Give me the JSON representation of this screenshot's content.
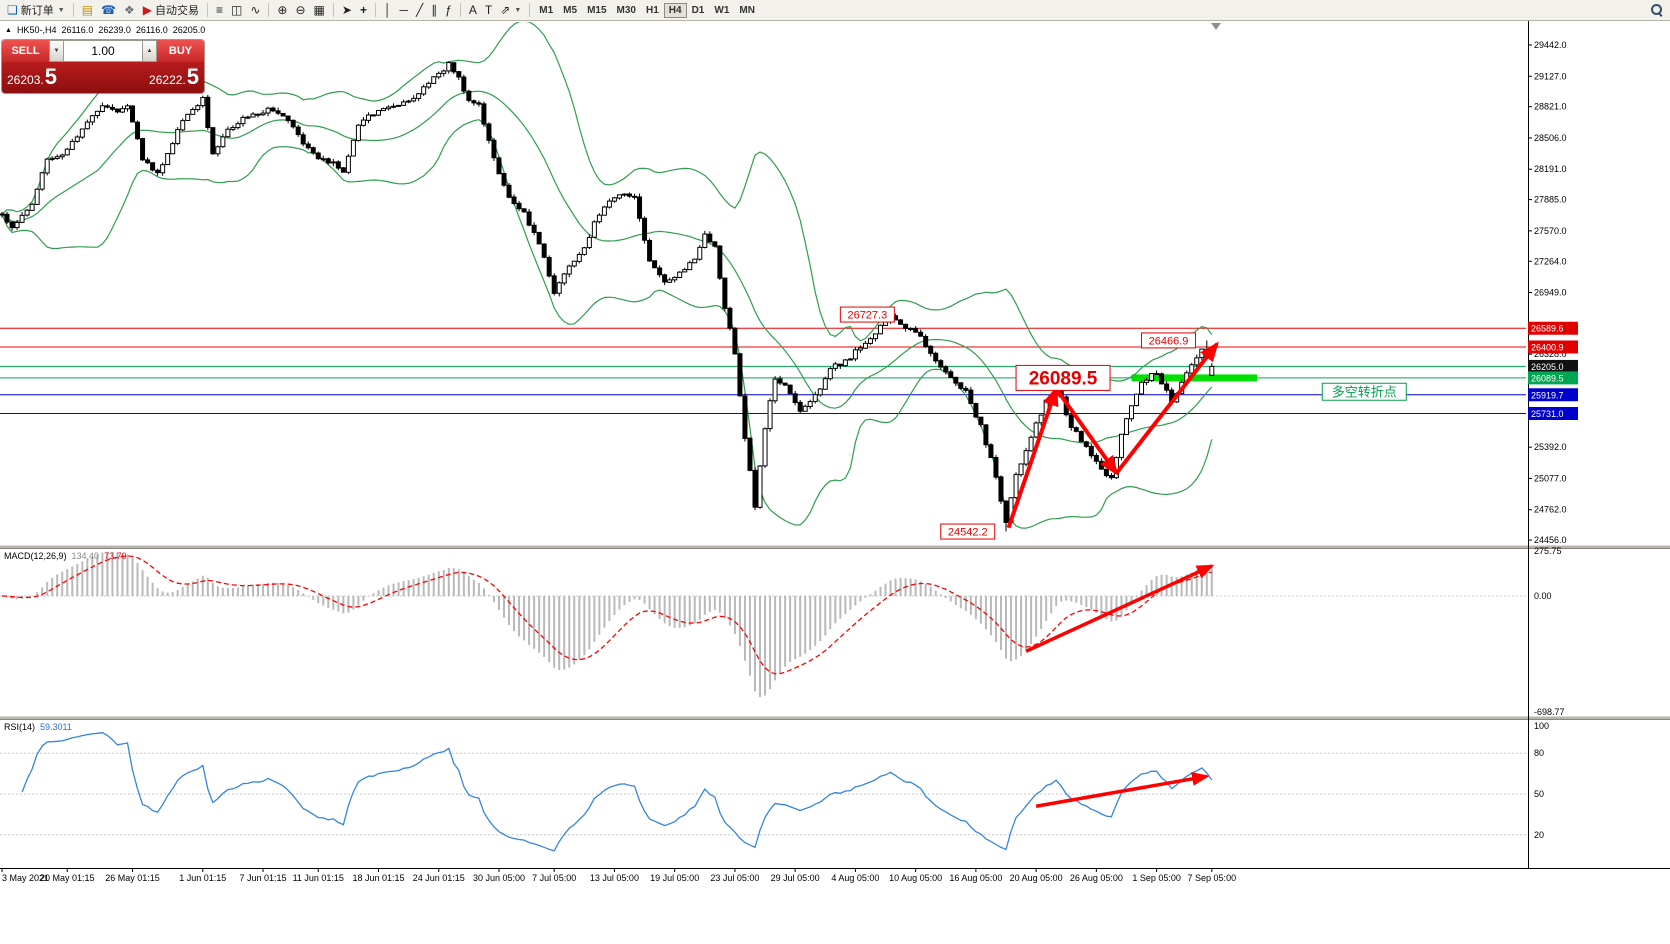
{
  "toolbar": {
    "new_order_label": "新订单",
    "algo_trading_label": "自动交易",
    "timeframes": [
      "M1",
      "M5",
      "M15",
      "M30",
      "H1",
      "H4",
      "D1",
      "W1",
      "MN"
    ],
    "active_timeframe": "H4"
  },
  "symbol_bar": {
    "collapse_icon": "▲",
    "symbol": "HK50-,H4",
    "open": "26116.0",
    "high": "26239.0",
    "low": "26116.0",
    "close": "26205.0"
  },
  "trade_panel": {
    "sell_label": "SELL",
    "buy_label": "BUY",
    "volume": "1.00",
    "sell_price_main": "26203.",
    "sell_price_pip": "5",
    "buy_price_main": "26222.",
    "buy_price_pip": "5"
  },
  "colors": {
    "bull": "#ffffff",
    "bear": "#000000",
    "wick": "#000000",
    "band": "#2f9e4f",
    "macd_hist": "#b9b9b9",
    "macd_signal": "#ff0000",
    "rsi_line": "#3584e4",
    "arrow": "#ff0000",
    "red_line": "#f00000",
    "blue_line": "#0000e0",
    "green_line": "#00a651"
  },
  "chart_data": {
    "type": "candlestick",
    "symbol": "HK50-",
    "period": "H4",
    "bars": 242,
    "ohlc_readout": {
      "open": 26116.0,
      "high": 26239.0,
      "low": 26116.0,
      "close": 26205.0
    },
    "y_axis": {
      "min": 24456.0,
      "max": 29442.0,
      "grid_labels": [
        "29442.0",
        "29127.0",
        "28821.0",
        "28506.0",
        "28191.0",
        "27885.0",
        "27570.0",
        "27264.0",
        "26949.0",
        "26328.0",
        "25392.0",
        "25077.0",
        "24762.0",
        "24456.0"
      ]
    },
    "time_labels": [
      {
        "text": "3 May 2021",
        "bar": 0
      },
      {
        "text": "20 May 01:15",
        "bar": 13
      },
      {
        "text": "26 May 01:15",
        "bar": 26
      },
      {
        "text": "1 Jun 01:15",
        "bar": 40
      },
      {
        "text": "7 Jun 01:15",
        "bar": 52
      },
      {
        "text": "11 Jun 01:15",
        "bar": 63
      },
      {
        "text": "18 Jun 01:15",
        "bar": 75
      },
      {
        "text": "24 Jun 01:15",
        "bar": 87
      },
      {
        "text": "30 Jun 05:00",
        "bar": 99
      },
      {
        "text": "7 Jul 05:00",
        "bar": 110
      },
      {
        "text": "13 Jul 05:00",
        "bar": 122
      },
      {
        "text": "19 Jul 05:00",
        "bar": 134
      },
      {
        "text": "23 Jul 05:00",
        "bar": 146
      },
      {
        "text": "29 Jul 05:00",
        "bar": 158
      },
      {
        "text": "4 Aug 05:00",
        "bar": 170
      },
      {
        "text": "10 Aug 05:00",
        "bar": 182
      },
      {
        "text": "16 Aug 05:00",
        "bar": 194
      },
      {
        "text": "20 Aug 05:00",
        "bar": 206
      },
      {
        "text": "26 Aug 05:00",
        "bar": 218
      },
      {
        "text": "1 Sep 05:00",
        "bar": 230
      },
      {
        "text": "7 Sep 05:00",
        "bar": 241
      }
    ],
    "price_keypoints": [
      [
        0,
        27750
      ],
      [
        2,
        27600
      ],
      [
        6,
        27850
      ],
      [
        9,
        28300
      ],
      [
        12,
        28350
      ],
      [
        16,
        28600
      ],
      [
        20,
        28850
      ],
      [
        23,
        28750
      ],
      [
        25,
        28850
      ],
      [
        28,
        28300
      ],
      [
        31,
        28150
      ],
      [
        33,
        28350
      ],
      [
        36,
        28700
      ],
      [
        40,
        28900
      ],
      [
        42,
        28350
      ],
      [
        45,
        28600
      ],
      [
        48,
        28700
      ],
      [
        51,
        28750
      ],
      [
        54,
        28800
      ],
      [
        57,
        28700
      ],
      [
        60,
        28450
      ],
      [
        63,
        28300
      ],
      [
        66,
        28250
      ],
      [
        68,
        28150
      ],
      [
        71,
        28650
      ],
      [
        74,
        28750
      ],
      [
        77,
        28800
      ],
      [
        80,
        28850
      ],
      [
        83,
        28950
      ],
      [
        86,
        29100
      ],
      [
        89,
        29250
      ],
      [
        91,
        29100
      ],
      [
        93,
        28900
      ],
      [
        95,
        28850
      ],
      [
        98,
        28300
      ],
      [
        101,
        27900
      ],
      [
        104,
        27750
      ],
      [
        107,
        27450
      ],
      [
        110,
        26950
      ],
      [
        113,
        27200
      ],
      [
        116,
        27400
      ],
      [
        118,
        27650
      ],
      [
        120,
        27800
      ],
      [
        123,
        27950
      ],
      [
        126,
        27900
      ],
      [
        129,
        27250
      ],
      [
        132,
        27050
      ],
      [
        135,
        27150
      ],
      [
        138,
        27300
      ],
      [
        140,
        27550
      ],
      [
        142,
        27400
      ],
      [
        144,
        26800
      ],
      [
        146,
        26350
      ],
      [
        148,
        25500
      ],
      [
        150,
        24800
      ],
      [
        152,
        25600
      ],
      [
        154,
        26100
      ],
      [
        156,
        26000
      ],
      [
        159,
        25750
      ],
      [
        162,
        25900
      ],
      [
        165,
        26200
      ],
      [
        168,
        26250
      ],
      [
        171,
        26400
      ],
      [
        174,
        26550
      ],
      [
        177,
        26700
      ],
      [
        180,
        26600
      ],
      [
        183,
        26500
      ],
      [
        186,
        26250
      ],
      [
        189,
        26100
      ],
      [
        192,
        25950
      ],
      [
        195,
        25600
      ],
      [
        198,
        25100
      ],
      [
        200,
        24620
      ],
      [
        202,
        25100
      ],
      [
        205,
        25500
      ],
      [
        208,
        25850
      ],
      [
        210,
        26020
      ],
      [
        213,
        25600
      ],
      [
        216,
        25400
      ],
      [
        219,
        25150
      ],
      [
        221,
        25100
      ],
      [
        224,
        25700
      ],
      [
        227,
        26050
      ],
      [
        230,
        26150
      ],
      [
        233,
        25850
      ],
      [
        236,
        26150
      ],
      [
        239,
        26380
      ],
      [
        240,
        26320
      ],
      [
        241,
        26205
      ]
    ],
    "forced_points": [
      {
        "bar": 150,
        "low": 24758.0
      },
      {
        "bar": 177,
        "high": 26727.3
      },
      {
        "bar": 200,
        "low": 24542.2
      },
      {
        "bar": 240,
        "high": 26466.9
      },
      {
        "bar": 241,
        "open": 26116.0,
        "high": 26239.0,
        "low": 26116.0,
        "close": 26205.0
      }
    ],
    "levels": [
      {
        "price": 26589.6,
        "label": "26589.6",
        "line": "red",
        "label_bg": "#e00000"
      },
      {
        "price": 26400.9,
        "label": "26400.9",
        "line": "red",
        "label_bg": "#e00000"
      },
      {
        "price": 26205.0,
        "label": "26205.0",
        "line": "green",
        "label_bg": "#111111"
      },
      {
        "price": 26089.5,
        "label": "26089.5",
        "line": "green",
        "label_bg": "#00a651"
      },
      {
        "price": 25919.7,
        "label": "25919.7",
        "line": "blue",
        "label_bg": "#0000cc"
      },
      {
        "price": 25731.0,
        "label": "25731.0",
        "line": "blue",
        "label_bg": "#0000cc"
      }
    ],
    "highlight_segment": {
      "price": 26089.5,
      "bar_from": 225,
      "bar_to": 250,
      "color": "#00e000",
      "thickness": 7
    },
    "bollinger": {
      "period": 20,
      "deviation": 2
    },
    "annotations": [
      {
        "text": "26727.3",
        "bar": 167,
        "price": 26727.3,
        "style": "box-red"
      },
      {
        "text": "26466.9",
        "bar": 227,
        "price": 26466.9,
        "style": "box-red"
      },
      {
        "text": "26089.5",
        "bar": 202,
        "price": 26089.5,
        "style": "box-red-big"
      },
      {
        "text": "24542.2",
        "bar": 187,
        "price": 24542.2,
        "style": "box-red"
      },
      {
        "text": "多空转折点",
        "bar": 263,
        "price": 25950,
        "style": "box-green"
      }
    ],
    "arrows": {
      "main": [
        [
          [
            200.5,
            24580
          ],
          [
            210,
            25980
          ]
        ],
        [
          [
            210,
            25980
          ],
          [
            222,
            25130
          ]
        ],
        [
          [
            222,
            25130
          ],
          [
            242,
            26430
          ]
        ]
      ],
      "macd": [
        [
          204,
          -330
        ],
        [
          241,
          180
        ]
      ],
      "rsi": [
        [
          206,
          41
        ],
        [
          240,
          63
        ]
      ]
    },
    "macd": {
      "label": "MACD(12,26,9)",
      "value_main": "134.40",
      "value_signal": "73.79",
      "axis_labels": [
        "275.75",
        "0.00",
        "-698.77"
      ],
      "fast": 12,
      "slow": 26,
      "signal": 9
    },
    "rsi": {
      "label": "RSI(14)",
      "value": "59.3011",
      "axis_labels": [
        "100",
        "80",
        "50",
        "20"
      ],
      "period": 14,
      "levels": [
        80,
        50,
        20
      ]
    }
  }
}
